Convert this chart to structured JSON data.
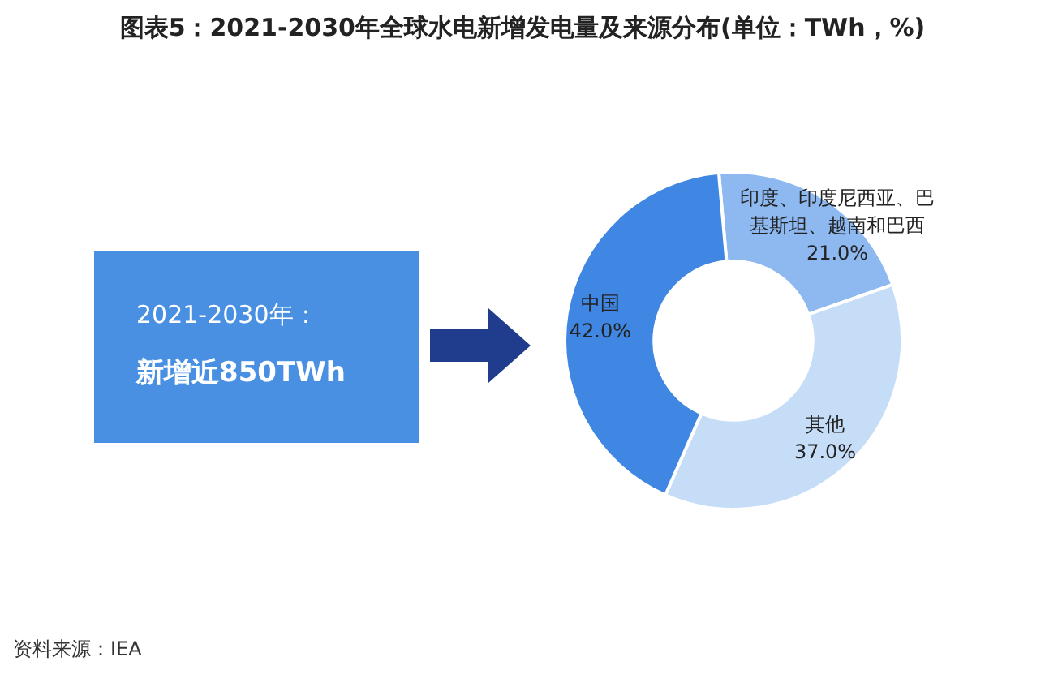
{
  "chart_data": {
    "type": "donut",
    "title": "图表5：2021-2030年全球水电新增发电量及来源分布(单位：TWh，%)",
    "categories": [
      "印度、印度尼西亚、巴基斯坦、越南和巴西",
      "其他",
      "中国"
    ],
    "values": [
      21.0,
      37.0,
      42.0
    ],
    "colors": [
      "#8db8f0",
      "#c6ddf7",
      "#3f87e2"
    ],
    "value_labels": [
      "21.0%",
      "37.0%",
      "42.0%"
    ],
    "annotations": [
      "2021-2030年：",
      "新增近850TWh",
      "资料来源：IEA"
    ]
  }
}
